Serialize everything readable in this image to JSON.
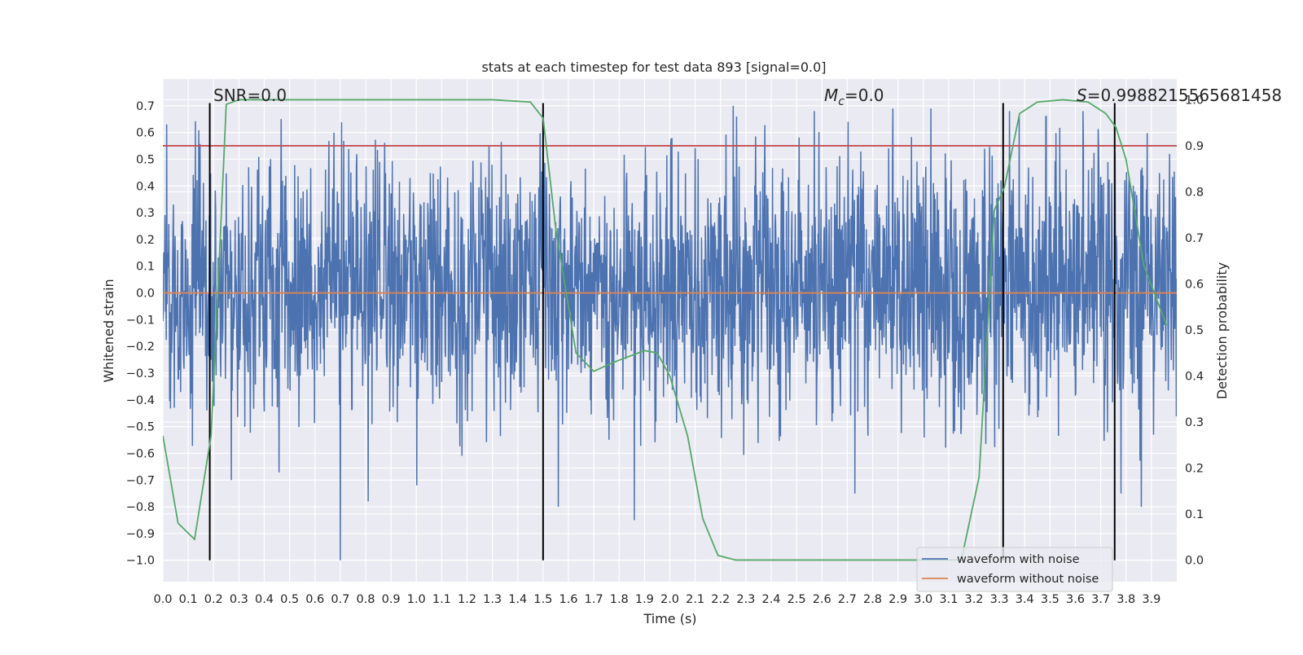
{
  "chart_data": {
    "type": "line",
    "title": "stats at each timestep for test data 893 [signal=0.0]",
    "xlabel": "Time (s)",
    "ylabel": "Whitened strain",
    "ylabel_right": "Detection probability",
    "xlim": [
      0.0,
      4.0
    ],
    "ylim": [
      -1.08,
      0.8
    ],
    "ylim_right": [
      -0.047,
      1.045
    ],
    "x_ticks": [
      0.0,
      0.1,
      0.2,
      0.3,
      0.4,
      0.5,
      0.6,
      0.7,
      0.8,
      0.9,
      1.0,
      1.1,
      1.2,
      1.3,
      1.4,
      1.5,
      1.6,
      1.7,
      1.8,
      1.9,
      2.0,
      2.1,
      2.2,
      2.3,
      2.4,
      2.5,
      2.6,
      2.7,
      2.8,
      2.9,
      3.0,
      3.1,
      3.2,
      3.3,
      3.4,
      3.5,
      3.6,
      3.7,
      3.8,
      3.9
    ],
    "x_tick_labels": [
      "0.0",
      "0.1",
      "0.2",
      "0.3",
      "0.4",
      "0.5",
      "0.6",
      "0.7",
      "0.8",
      "0.9",
      "1.0",
      "1.1",
      "1.2",
      "1.3",
      "1.4",
      "1.5",
      "1.6",
      "1.7",
      "1.8",
      "1.9",
      "2.0",
      "2.1",
      "2.2",
      "2.3",
      "2.4",
      "2.5",
      "2.6",
      "2.7",
      "2.8",
      "2.9",
      "3.0",
      "3.1",
      "3.2",
      "3.3",
      "3.4",
      "3.5",
      "3.6",
      "3.7",
      "3.8",
      "3.9"
    ],
    "y_ticks": [
      0.7,
      0.6,
      0.5,
      0.4,
      0.3,
      0.2,
      0.1,
      0.0,
      -0.1,
      -0.2,
      -0.3,
      -0.4,
      -0.5,
      -0.6,
      -0.7,
      -0.8,
      -0.9,
      -1.0
    ],
    "y_tick_labels": [
      "0.7",
      "0.6",
      "0.5",
      "0.4",
      "0.3",
      "0.2",
      "0.1",
      "0.0",
      "−0.1",
      "−0.2",
      "−0.3",
      "−0.4",
      "−0.5",
      "−0.6",
      "−0.7",
      "−0.8",
      "−0.9",
      "−1.0"
    ],
    "y_right_ticks": [
      1.0,
      0.9,
      0.8,
      0.7,
      0.6,
      0.5,
      0.4,
      0.3,
      0.2,
      0.1,
      0.0
    ],
    "y_right_tick_labels": [
      "1.0",
      "0.9",
      "0.8",
      "0.7",
      "0.6",
      "0.5",
      "0.4",
      "0.3",
      "0.2",
      "0.1",
      "0.0"
    ],
    "grid": true,
    "background": "#eaeaf2",
    "legend_position": "bottom-right",
    "annotations": {
      "snr": "SNR=0.0",
      "mc_symbol": "M",
      "mc_sub": "c",
      "mc_value": "=0.0",
      "s_symbol": "S",
      "s_value": "=0.9988215565681458"
    },
    "vertical_lines_x": [
      0.185,
      1.5,
      3.315,
      3.755
    ],
    "vertical_lines_ymax": 0.71,
    "threshold_line": {
      "axis": "right",
      "value": 0.9,
      "color": "#c44e52"
    },
    "series": [
      {
        "name": "waveform with noise",
        "axis": "left",
        "color": "#4c72b0",
        "style": "noise",
        "x_range": [
          0.0,
          4.0
        ],
        "typical_envelope": [
          -0.45,
          0.5
        ],
        "spikes": [
          [
            0.015,
            0.63
          ],
          [
            0.7,
            -1.0
          ],
          [
            0.27,
            -0.7
          ],
          [
            0.81,
            -0.78
          ],
          [
            1.86,
            -0.85
          ],
          [
            1.56,
            -0.8
          ],
          [
            2.25,
            0.7
          ],
          [
            2.57,
            0.68
          ],
          [
            2.88,
            0.69
          ],
          [
            3.03,
            0.69
          ],
          [
            3.34,
            0.68
          ],
          [
            3.63,
            0.68
          ],
          [
            3.86,
            -0.8
          ],
          [
            3.78,
            -0.75
          ]
        ]
      },
      {
        "name": "waveform without noise",
        "axis": "left",
        "color": "#dd8452",
        "x": [
          0.0,
          4.0
        ],
        "y": [
          0.0,
          0.0
        ]
      },
      {
        "name": "detection probability",
        "axis": "right",
        "color": "#55a868",
        "x": [
          0.0,
          0.06,
          0.125,
          0.19,
          0.22,
          0.25,
          0.3,
          0.5,
          1.0,
          1.3,
          1.45,
          1.5,
          1.55,
          1.63,
          1.7,
          1.78,
          1.9,
          1.95,
          2.0,
          2.07,
          2.13,
          2.19,
          2.26,
          2.5,
          3.0,
          3.15,
          3.22,
          3.28,
          3.32,
          3.38,
          3.45,
          3.55,
          3.65,
          3.72,
          3.76,
          3.8,
          3.87,
          3.96
        ],
        "y": [
          0.27,
          0.08,
          0.045,
          0.27,
          0.62,
          0.99,
          1.0,
          1.0,
          1.0,
          1.0,
          0.995,
          0.96,
          0.72,
          0.45,
          0.41,
          0.43,
          0.455,
          0.45,
          0.4,
          0.27,
          0.09,
          0.01,
          0.0,
          0.0,
          0.0,
          0.0,
          0.18,
          0.76,
          0.81,
          0.97,
          0.995,
          1.0,
          0.995,
          0.97,
          0.94,
          0.87,
          0.64,
          0.51
        ]
      }
    ]
  }
}
